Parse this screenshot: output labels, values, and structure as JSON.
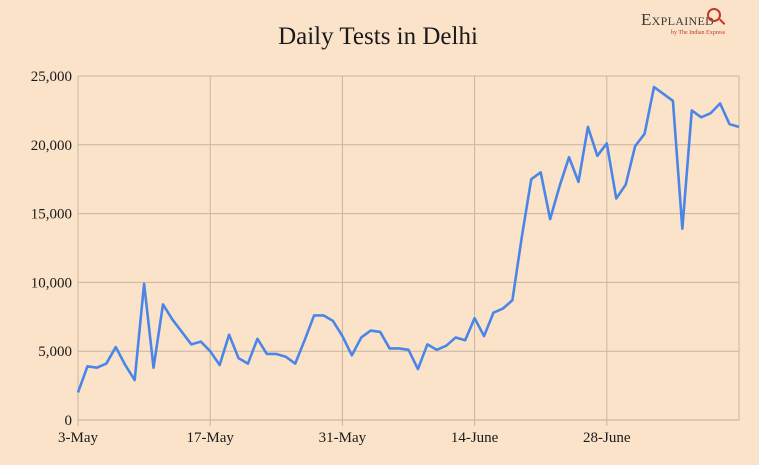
{
  "logo": {
    "word": "Explained",
    "sub": "by The Indian Express"
  },
  "colors": {
    "background": "#fbe3c9",
    "line": "#4a86e8",
    "grid": "#c8b49e"
  },
  "chart_data": {
    "type": "line",
    "title": "Daily Tests in Delhi",
    "xlabel": "",
    "ylabel": "",
    "x_tick_labels": [
      "3-May",
      "17-May",
      "31-May",
      "14-June",
      "28-June"
    ],
    "y_tick_labels": [
      "0",
      "5,000",
      "10,000",
      "15,000",
      "20,000",
      "25,000"
    ],
    "ylim": [
      0,
      25000
    ],
    "grid": true,
    "legend": "none",
    "series": [
      {
        "values": [
          2000,
          3900,
          3800,
          4100,
          5300,
          4000,
          2900,
          9900,
          3800,
          8400,
          7300,
          6400,
          5500,
          5700,
          5000,
          4000,
          6200,
          4500,
          4100,
          5900,
          4800,
          4800,
          4600,
          4100,
          5800,
          7600,
          7600,
          7200,
          6100,
          4700,
          6000,
          6500,
          6400,
          5200,
          5200,
          5100,
          3700,
          5500,
          5100,
          5400,
          6000,
          5800,
          7400,
          6100,
          7800,
          8100,
          8700,
          13300,
          17500,
          18000,
          14600,
          17000,
          19100,
          17300,
          21300,
          19200,
          20100,
          16100,
          17100,
          19900,
          20800,
          24200,
          23700,
          23200,
          13900,
          22500,
          22000,
          22300,
          23000,
          21500,
          21300
        ]
      }
    ]
  }
}
